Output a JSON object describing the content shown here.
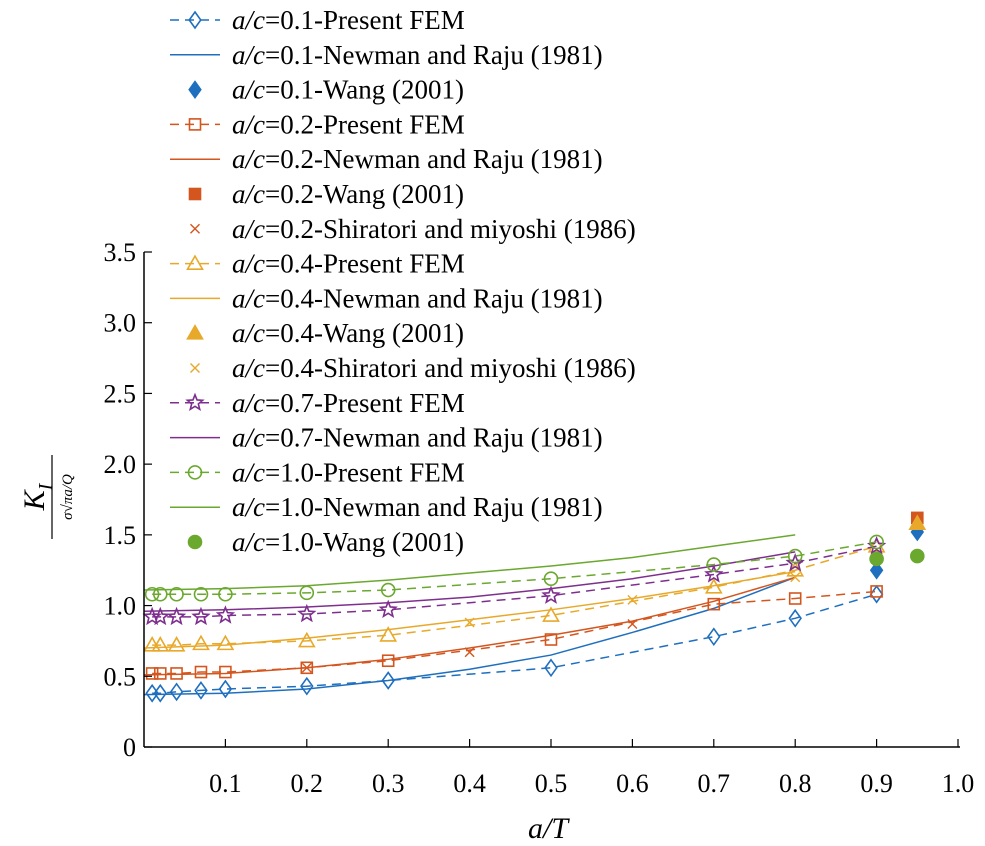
{
  "chart_data": {
    "type": "line",
    "xlabel": "a/T",
    "ylabel": "K_I / (σ√(πa/Q))",
    "ylabel_main": "K",
    "ylabel_sub": "I",
    "ylabel_den": "σ√πa/Q",
    "xlim": [
      0,
      1.0
    ],
    "ylim": [
      0,
      3.5
    ],
    "xticks": [
      0.1,
      0.2,
      0.3,
      0.4,
      0.5,
      0.6,
      0.7,
      0.8,
      0.9,
      1.0
    ],
    "xtick_labels": [
      "0.1",
      "0.2",
      "0.3",
      "0.4",
      "0.5",
      "0.6",
      "0.7",
      "0.8",
      "0.9",
      "1.0"
    ],
    "yticks": [
      0,
      0.5,
      1.0,
      1.5,
      2.0,
      2.5,
      3.0,
      3.5
    ],
    "ytick_labels": [
      "0",
      "0.5",
      "1.0",
      "1.5",
      "2.0",
      "2.5",
      "3.0",
      "3.5"
    ],
    "legend_position": "top",
    "colors": {
      "blue": "#1f6fbf",
      "red": "#d4561f",
      "yellow": "#e8a92a",
      "purple": "#7e2f8e",
      "green": "#6aa82e"
    },
    "series": [
      {
        "name": "a/c=0.1-Present FEM",
        "ac": "0.1",
        "source": "-Present FEM",
        "color": "#1f6fbf",
        "style": "dashed",
        "marker": "diamond-open",
        "x": [
          0.01,
          0.02,
          0.04,
          0.07,
          0.1,
          0.2,
          0.3,
          0.5,
          0.7,
          0.8,
          0.9
        ],
        "y": [
          0.38,
          0.38,
          0.39,
          0.4,
          0.41,
          0.43,
          0.47,
          0.56,
          0.78,
          0.91,
          1.08
        ]
      },
      {
        "name": "a/c=0.1-Newman and Raju (1981)",
        "ac": "0.1",
        "source": "-Newman and Raju (1981)",
        "color": "#1f6fbf",
        "style": "solid",
        "marker": "none",
        "x": [
          0.0,
          0.1,
          0.2,
          0.3,
          0.4,
          0.5,
          0.6,
          0.7,
          0.8
        ],
        "y": [
          0.37,
          0.38,
          0.41,
          0.47,
          0.55,
          0.65,
          0.81,
          0.98,
          1.2
        ]
      },
      {
        "name": "a/c=0.1-Wang (2001)",
        "ac": "0.1",
        "source": "-Wang (2001)",
        "color": "#1f6fbf",
        "style": "none",
        "marker": "diamond-filled",
        "x": [
          0.9,
          0.95
        ],
        "y": [
          1.25,
          1.52
        ]
      },
      {
        "name": "a/c=0.2-Present FEM",
        "ac": "0.2",
        "source": "-Present FEM",
        "color": "#d4561f",
        "style": "dashed",
        "marker": "square-open",
        "x": [
          0.01,
          0.02,
          0.04,
          0.07,
          0.1,
          0.2,
          0.3,
          0.5,
          0.7,
          0.8,
          0.9
        ],
        "y": [
          0.52,
          0.52,
          0.52,
          0.53,
          0.53,
          0.56,
          0.61,
          0.76,
          1.01,
          1.05,
          1.1
        ]
      },
      {
        "name": "a/c=0.2-Newman and Raju (1981)",
        "ac": "0.2",
        "source": "-Newman and Raju (1981)",
        "color": "#d4561f",
        "style": "solid",
        "marker": "none",
        "x": [
          0.0,
          0.1,
          0.2,
          0.3,
          0.4,
          0.5,
          0.6,
          0.7,
          0.8
        ],
        "y": [
          0.51,
          0.52,
          0.56,
          0.62,
          0.7,
          0.79,
          0.89,
          1.03,
          1.2
        ]
      },
      {
        "name": "a/c=0.2-Wang (2001)",
        "ac": "0.2",
        "source": "-Wang (2001)",
        "color": "#d4561f",
        "style": "none",
        "marker": "square-filled",
        "x": [
          0.95
        ],
        "y": [
          1.62
        ]
      },
      {
        "name": "a/c=0.2-Shiratori and miyoshi (1986)",
        "ac": "0.2",
        "source": "-Shiratori and miyoshi (1986)",
        "color": "#d4561f",
        "style": "none",
        "marker": "x",
        "x": [
          0.2,
          0.4,
          0.6
        ],
        "y": [
          0.56,
          0.67,
          0.87
        ]
      },
      {
        "name": "a/c=0.4-Present FEM",
        "ac": "0.4",
        "source": "-Present FEM",
        "color": "#e8a92a",
        "style": "dashed",
        "marker": "triangle-open",
        "x": [
          0.01,
          0.02,
          0.04,
          0.07,
          0.1,
          0.2,
          0.3,
          0.5,
          0.7,
          0.8,
          0.9
        ],
        "y": [
          0.72,
          0.72,
          0.72,
          0.73,
          0.73,
          0.75,
          0.79,
          0.93,
          1.13,
          1.25,
          1.42
        ]
      },
      {
        "name": "a/c=0.4-Newman and Raju (1981)",
        "ac": "0.4",
        "source": "-Newman and Raju (1981)",
        "color": "#e8a92a",
        "style": "solid",
        "marker": "none",
        "x": [
          0.0,
          0.1,
          0.2,
          0.3,
          0.4,
          0.5,
          0.6,
          0.7,
          0.8
        ],
        "y": [
          0.7,
          0.72,
          0.77,
          0.83,
          0.9,
          0.97,
          1.05,
          1.14,
          1.24
        ]
      },
      {
        "name": "a/c=0.4-Wang (2001)",
        "ac": "0.4",
        "source": "-Wang (2001)",
        "color": "#e8a92a",
        "style": "none",
        "marker": "triangle-filled",
        "x": [
          0.95
        ],
        "y": [
          1.58
        ]
      },
      {
        "name": "a/c=0.4-Shiratori and miyoshi (1986)",
        "ac": "0.4",
        "source": "-Shiratori and miyoshi (1986)",
        "color": "#e8a92a",
        "style": "none",
        "marker": "x",
        "x": [
          0.4,
          0.6,
          0.8
        ],
        "y": [
          0.88,
          1.04,
          1.2
        ]
      },
      {
        "name": "a/c=0.7-Present FEM",
        "ac": "0.7",
        "source": "-Present FEM",
        "color": "#7e2f8e",
        "style": "dashed",
        "marker": "star-open",
        "x": [
          0.01,
          0.02,
          0.04,
          0.07,
          0.1,
          0.2,
          0.3,
          0.5,
          0.7,
          0.8,
          0.9
        ],
        "y": [
          0.92,
          0.92,
          0.92,
          0.92,
          0.93,
          0.94,
          0.97,
          1.07,
          1.22,
          1.3,
          1.42
        ]
      },
      {
        "name": "a/c=0.7-Newman and Raju (1981)",
        "ac": "0.7",
        "source": "-Newman and Raju (1981)",
        "color": "#7e2f8e",
        "style": "solid",
        "marker": "none",
        "x": [
          0.0,
          0.1,
          0.2,
          0.3,
          0.4,
          0.5,
          0.6,
          0.7,
          0.8
        ],
        "y": [
          0.96,
          0.97,
          0.99,
          1.02,
          1.06,
          1.12,
          1.19,
          1.28,
          1.38
        ]
      },
      {
        "name": "a/c=1.0-Present FEM",
        "ac": "1.0",
        "source": "-Present FEM",
        "color": "#6aa82e",
        "style": "dashed",
        "marker": "circle-open",
        "x": [
          0.01,
          0.02,
          0.04,
          0.07,
          0.1,
          0.2,
          0.3,
          0.5,
          0.7,
          0.8,
          0.9
        ],
        "y": [
          1.08,
          1.08,
          1.08,
          1.08,
          1.08,
          1.09,
          1.11,
          1.19,
          1.29,
          1.35,
          1.45
        ]
      },
      {
        "name": "a/c=1.0-Newman and Raju (1981)",
        "ac": "1.0",
        "source": "-Newman and Raju (1981)",
        "color": "#6aa82e",
        "style": "solid",
        "marker": "none",
        "x": [
          0.0,
          0.1,
          0.2,
          0.3,
          0.4,
          0.5,
          0.6,
          0.7,
          0.8
        ],
        "y": [
          1.11,
          1.12,
          1.14,
          1.18,
          1.23,
          1.28,
          1.34,
          1.42,
          1.5
        ]
      },
      {
        "name": "a/c=1.0-Wang (2001)",
        "ac": "1.0",
        "source": "-Wang (2001)",
        "color": "#6aa82e",
        "style": "none",
        "marker": "circle-filled",
        "x": [
          0.9,
          0.95
        ],
        "y": [
          1.33,
          1.35
        ]
      }
    ]
  }
}
